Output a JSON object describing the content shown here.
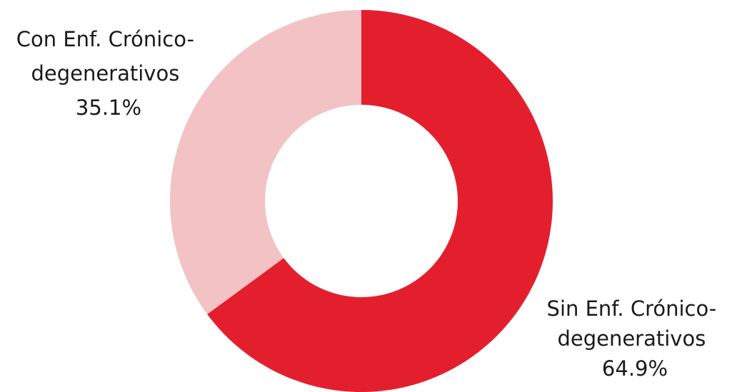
{
  "chart_data": {
    "type": "pie",
    "variant": "donut",
    "slices": [
      {
        "label_lines": [
          "Sin Enf. Crónico-",
          "degenerativos"
        ],
        "value": 64.9,
        "value_label": "64.9%",
        "color": "#e41f2d"
      },
      {
        "label_lines": [
          "Con Enf. Crónico-",
          "degenerativos"
        ],
        "value": 35.1,
        "value_label": "35.1%",
        "color": "#f2c2c5"
      }
    ],
    "start": "12 o'clock",
    "direction": "clockwise",
    "legend": "none"
  }
}
